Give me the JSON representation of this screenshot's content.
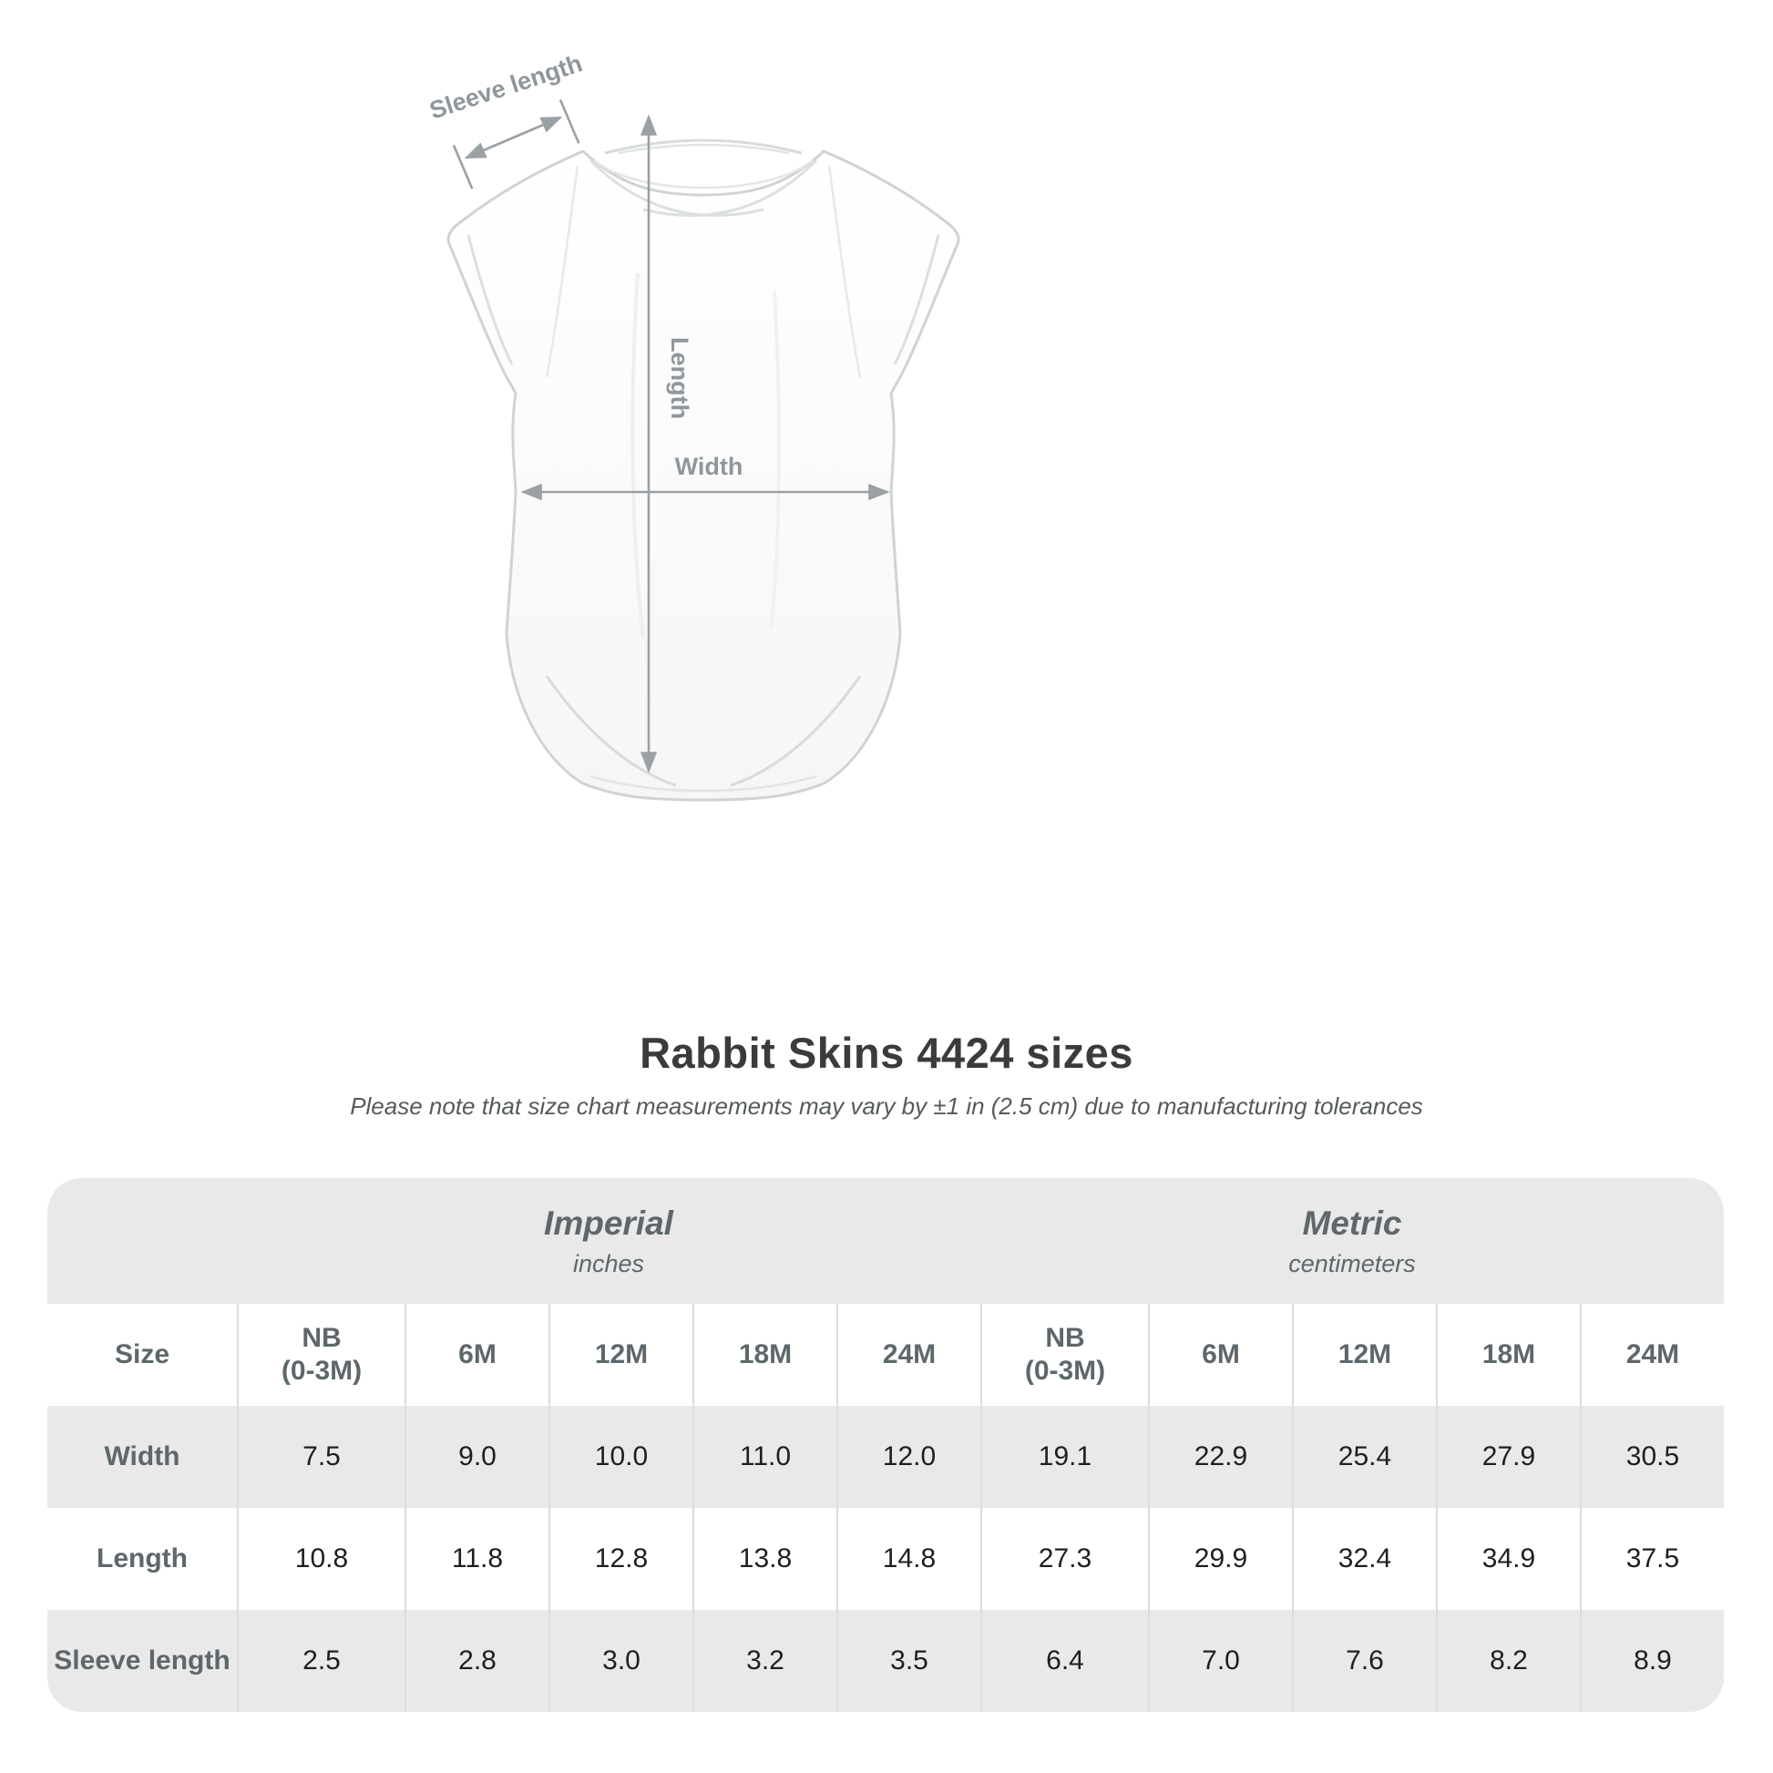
{
  "illustration": {
    "labels": {
      "sleeve_length": "Sleeve length",
      "length": "Length",
      "width": "Width"
    },
    "annotation_color": "#9aa1a5"
  },
  "title": "Rabbit Skins 4424 sizes",
  "subtitle": "Please note that size chart measurements may vary by ±1 in (2.5 cm) due to manufacturing tolerances",
  "table": {
    "groups": [
      {
        "label": "Imperial",
        "sublabel": "inches"
      },
      {
        "label": "Metric",
        "sublabel": "centimeters"
      }
    ],
    "columns": [
      "Size",
      "NB\n(0-3M)",
      "6M",
      "12M",
      "18M",
      "24M",
      "NB\n(0-3M)",
      "6M",
      "12M",
      "18M",
      "24M"
    ],
    "rows": [
      {
        "label": "Width",
        "values": [
          "7.5",
          "9.0",
          "10.0",
          "11.0",
          "12.0",
          "19.1",
          "22.9",
          "25.4",
          "27.9",
          "30.5"
        ]
      },
      {
        "label": "Length",
        "values": [
          "10.8",
          "11.8",
          "12.8",
          "13.8",
          "14.8",
          "27.3",
          "29.9",
          "32.4",
          "34.9",
          "37.5"
        ]
      },
      {
        "label": "Sleeve length",
        "values": [
          "2.5",
          "2.8",
          "3.0",
          "3.2",
          "3.5",
          "6.4",
          "7.0",
          "7.6",
          "8.2",
          "8.9"
        ]
      }
    ],
    "colors": {
      "band_gray": "#e9e9e9",
      "label_text": "#5e676b",
      "value_text": "#1f1f1f"
    }
  },
  "chart_data": {
    "type": "table",
    "title": "Rabbit Skins 4424 sizes",
    "note": "Please note that size chart measurements may vary by ±1 in (2.5 cm) due to manufacturing tolerances",
    "column_groups": [
      {
        "label": "Imperial",
        "unit": "inches",
        "sizes": [
          "NB (0-3M)",
          "6M",
          "12M",
          "18M",
          "24M"
        ]
      },
      {
        "label": "Metric",
        "unit": "centimeters",
        "sizes": [
          "NB (0-3M)",
          "6M",
          "12M",
          "18M",
          "24M"
        ]
      }
    ],
    "measurements": [
      {
        "name": "Width",
        "imperial_in": [
          7.5,
          9.0,
          10.0,
          11.0,
          12.0
        ],
        "metric_cm": [
          19.1,
          22.9,
          25.4,
          27.9,
          30.5
        ]
      },
      {
        "name": "Length",
        "imperial_in": [
          10.8,
          11.8,
          12.8,
          13.8,
          14.8
        ],
        "metric_cm": [
          27.3,
          29.9,
          32.4,
          34.9,
          37.5
        ]
      },
      {
        "name": "Sleeve length",
        "imperial_in": [
          2.5,
          2.8,
          3.0,
          3.2,
          3.5
        ],
        "metric_cm": [
          6.4,
          7.0,
          7.6,
          8.2,
          8.9
        ]
      }
    ]
  }
}
